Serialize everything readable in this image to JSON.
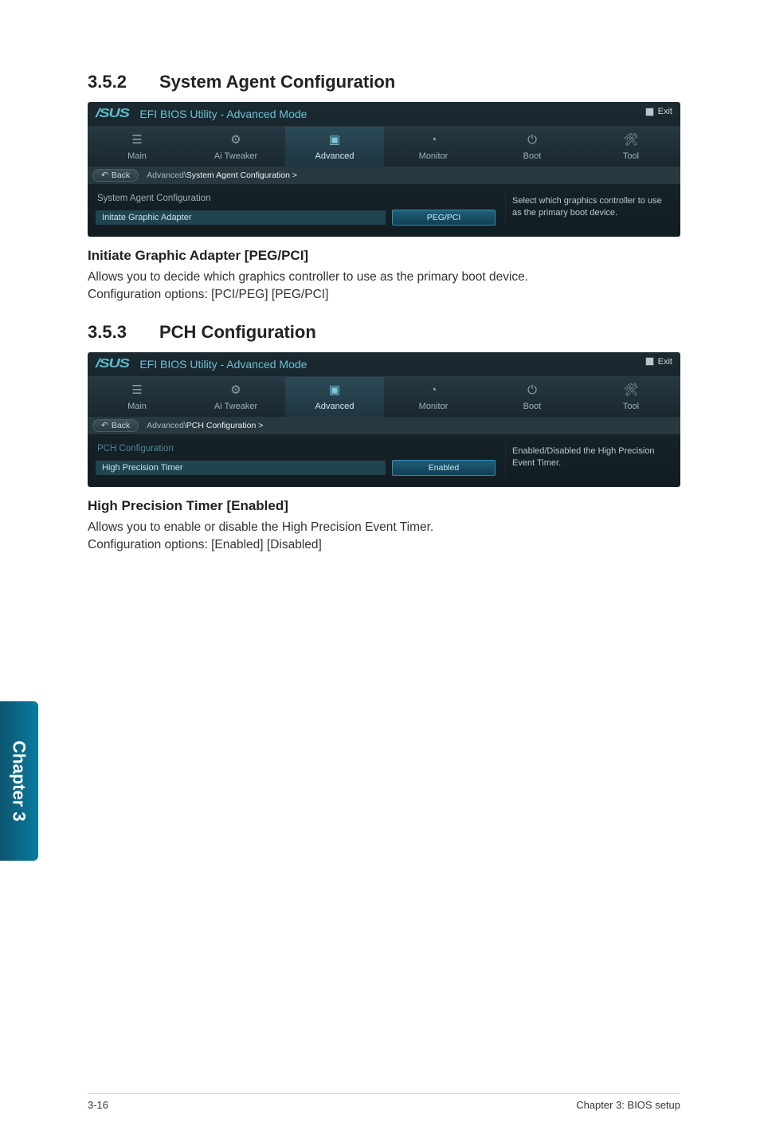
{
  "sections": {
    "s1": {
      "num": "3.5.2",
      "title": "System Agent Configuration"
    },
    "s2": {
      "num": "3.5.3",
      "title": "PCH Configuration"
    }
  },
  "bios_common": {
    "logo": "/SUS",
    "header": "EFI BIOS Utility - Advanced Mode",
    "exit": "Exit",
    "back": "Back",
    "tabs": {
      "main": "Main",
      "tweaker": "Ai  Tweaker",
      "advanced": "Advanced",
      "monitor": "Monitor",
      "boot": "Boot",
      "tool": "Tool"
    }
  },
  "panel1": {
    "bc_prefix": "Advanced\\ ",
    "bc_current": "System Agent Configuration  >",
    "cfg_title": "System Agent Configuration",
    "row_label": "Initate Graphic Adapter",
    "row_value": "PEG/PCI",
    "help": "Select which graphics controller to use as the primary boot device."
  },
  "sub1": {
    "heading": "Initiate Graphic Adapter [PEG/PCI]",
    "line1": "Allows you to decide which graphics controller to use as the primary boot device.",
    "line2": "Configuration options: [PCI/PEG] [PEG/PCI]"
  },
  "panel2": {
    "bc_prefix": "Advanced\\ ",
    "bc_current": "PCH Configuration  >",
    "cfg_title": "PCH Configuration",
    "row_label": "High Precision Timer",
    "row_value": "Enabled",
    "help": "Enabled/Disabled the High Precision Event Timer."
  },
  "sub2": {
    "heading": "High Precision Timer [Enabled]",
    "line1": "Allows you to enable or disable the High Precision Event Timer.",
    "line2": "Configuration options: [Enabled] [Disabled]"
  },
  "chapter_tab": "Chapter 3",
  "footer": {
    "left": "3-16",
    "right": "Chapter 3: BIOS setup"
  },
  "colors": {
    "panel_bg_top": "#1a2a30",
    "panel_bg_bottom": "#121d22",
    "accent": "#6fbfd6",
    "tab_active": "#2b4a56",
    "chapter_blue": "#0a7aa0"
  }
}
